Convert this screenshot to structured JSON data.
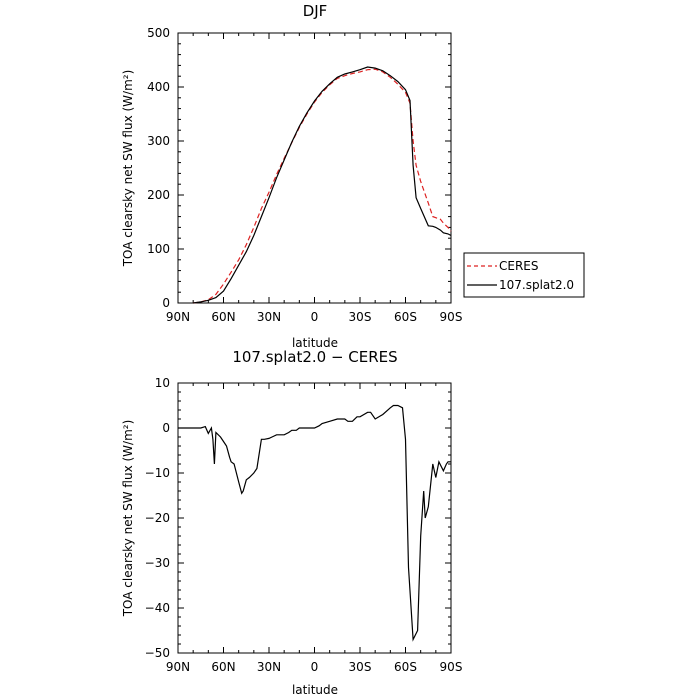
{
  "chart_data": [
    {
      "type": "line",
      "title": "DJF",
      "xlabel": "latitude",
      "ylabel": "TOA clearsky net SW flux",
      "ylabel_unit": "(W/m²)",
      "x_ticks": [
        "90N",
        "60N",
        "30N",
        "0",
        "30S",
        "60S",
        "90S"
      ],
      "x_tick_values": [
        -90,
        -60,
        -30,
        0,
        30,
        60,
        90
      ],
      "xlim": [
        -90,
        90
      ],
      "ylim": [
        0,
        500
      ],
      "y_ticks": [
        0,
        100,
        200,
        300,
        400,
        500
      ],
      "legend_position": "right",
      "x": [
        -80,
        -75,
        -70,
        -67,
        -65,
        -60,
        -55,
        -50,
        -45,
        -40,
        -35,
        -30,
        -25,
        -20,
        -15,
        -10,
        -5,
        0,
        5,
        10,
        15,
        20,
        25,
        30,
        35,
        40,
        45,
        50,
        55,
        60,
        63,
        65,
        67,
        70,
        75,
        78,
        80,
        83,
        85,
        88,
        90
      ],
      "series": [
        {
          "name": "CERES",
          "color": "#dd2222",
          "dash": "dashed",
          "values": [
            0,
            2,
            6,
            12,
            16,
            35,
            57,
            80,
            108,
            140,
            175,
            205,
            238,
            268,
            297,
            325,
            350,
            372,
            390,
            404,
            416,
            421,
            425,
            428,
            432,
            433,
            428,
            418,
            405,
            390,
            370,
            300,
            255,
            225,
            185,
            160,
            158,
            155,
            148,
            140,
            133
          ]
        },
        {
          "name": "107.splat2.0",
          "color": "#000000",
          "dash": "solid",
          "values": [
            0,
            2,
            5,
            8,
            10,
            22,
            45,
            70,
            95,
            125,
            160,
            195,
            232,
            265,
            298,
            327,
            352,
            374,
            392,
            406,
            418,
            424,
            428,
            432,
            437,
            435,
            430,
            421,
            410,
            395,
            375,
            255,
            195,
            175,
            143,
            142,
            140,
            135,
            130,
            128,
            125
          ]
        }
      ]
    },
    {
      "type": "line",
      "title": "107.splat2.0 − CERES",
      "xlabel": "latitude",
      "ylabel": "TOA clearsky net SW flux",
      "ylabel_unit": "(W/m²)",
      "x_ticks": [
        "90N",
        "60N",
        "30N",
        "0",
        "30S",
        "60S",
        "90S"
      ],
      "x_tick_values": [
        -90,
        -60,
        -30,
        0,
        30,
        60,
        90
      ],
      "xlim": [
        -90,
        90
      ],
      "ylim": [
        -50,
        10
      ],
      "y_ticks": [
        -50,
        -40,
        -30,
        -20,
        -10,
        0,
        10
      ],
      "x": [
        -90,
        -85,
        -80,
        -75,
        -72,
        -70,
        -68,
        -67,
        -66,
        -65,
        -62,
        -60,
        -58,
        -56,
        -55,
        -53,
        -50,
        -48,
        -47,
        -45,
        -43,
        -40,
        -38,
        -35,
        -33,
        -30,
        -28,
        -25,
        -20,
        -17,
        -15,
        -12,
        -10,
        -5,
        0,
        3,
        5,
        10,
        15,
        20,
        22,
        25,
        28,
        30,
        35,
        37,
        40,
        45,
        50,
        52,
        55,
        58,
        60,
        62,
        65,
        68,
        70,
        72,
        73,
        75,
        78,
        80,
        82,
        85,
        87,
        88,
        90
      ],
      "series": [
        {
          "name": "107.splat2.0 − CERES",
          "color": "#000000",
          "values": [
            0,
            0,
            0,
            0,
            0.3,
            -1.2,
            0,
            -2.5,
            -8,
            -1,
            -2,
            -3,
            -4,
            -6.5,
            -7.5,
            -8,
            -12,
            -14.5,
            -14,
            -11.5,
            -11,
            -10,
            -9,
            -2.5,
            -2.5,
            -2.3,
            -2,
            -1.5,
            -1.5,
            -1,
            -0.5,
            -0.5,
            0,
            0,
            0,
            0.5,
            1,
            1.5,
            2,
            2,
            1.5,
            1.5,
            2.5,
            2.5,
            3.5,
            3.5,
            2,
            3,
            4.5,
            5,
            5,
            4.5,
            -2.5,
            -31,
            -47,
            -45,
            -24,
            -14,
            -20,
            -17.5,
            -8,
            -11,
            -7.5,
            -9.5,
            -8,
            -7.5,
            -7.5
          ]
        }
      ]
    }
  ]
}
